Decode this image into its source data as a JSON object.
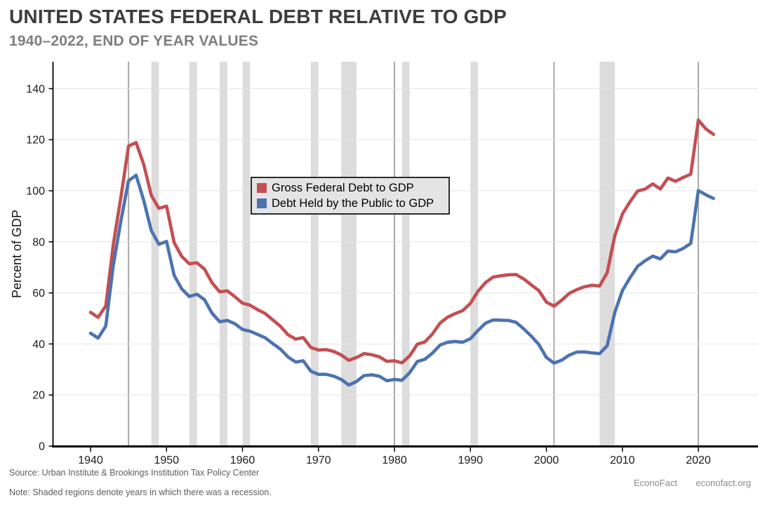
{
  "header": {
    "title": "UNITED STATES FEDERAL DEBT RELATIVE TO GDP",
    "subtitle": "1940–2022, END OF YEAR VALUES"
  },
  "footer": {
    "source": "Source: Urban Institute & Brookings Institution Tax Policy Center",
    "note": "Note: Shaded regions denote years in which there was a recession.",
    "brand": "EconoFact",
    "site": "econofact.org"
  },
  "chart_data": {
    "type": "line",
    "title": "United States Federal Debt Relative to GDP",
    "subtitle": "1940-2022, end of year values",
    "xlabel": "",
    "ylabel": "Percent of GDP",
    "start_year": 1940,
    "end_year": 2022,
    "x_ticks": [
      1940,
      1950,
      1960,
      1970,
      1980,
      1990,
      2000,
      2010,
      2020
    ],
    "y_ticks": [
      0,
      20,
      40,
      60,
      80,
      100,
      120,
      140
    ],
    "x_domain": [
      1935,
      2028
    ],
    "y_domain": [
      -2.5,
      150.5
    ],
    "grid": "horizontal-only",
    "legend_position": "upper-center-left, inside plot",
    "series": [
      {
        "name": "Gross Federal Debt to GDP",
        "color": "#c44e52",
        "values": [
          52.4,
          50.4,
          54.9,
          79.1,
          97.6,
          117.5,
          118.9,
          110.3,
          98.2,
          93.1,
          94.0,
          79.7,
          74.3,
          71.4,
          71.8,
          69.3,
          63.9,
          60.4,
          60.8,
          58.5,
          56.0,
          55.2,
          53.4,
          51.9,
          49.4,
          46.9,
          43.6,
          41.9,
          42.5,
          38.6,
          37.6,
          37.8,
          37.1,
          35.7,
          33.6,
          34.7,
          36.2,
          35.8,
          35.0,
          33.2,
          33.4,
          32.6,
          35.3,
          39.9,
          40.8,
          43.9,
          48.2,
          50.5,
          51.9,
          53.1,
          55.9,
          60.7,
          64.1,
          66.2,
          66.7,
          67.1,
          67.2,
          65.5,
          63.2,
          60.9,
          56.4,
          54.8,
          57.1,
          59.8,
          61.3,
          62.4,
          63.0,
          62.7,
          67.9,
          82.3,
          90.9,
          95.7,
          99.9,
          100.7,
          102.7,
          100.7,
          105.0,
          103.7,
          105.2,
          106.5,
          127.7,
          124.2,
          122.1
        ]
      },
      {
        "name": "Debt Held by the Public to GDP",
        "color": "#4c72b0",
        "values": [
          44.2,
          42.3,
          47.0,
          70.9,
          88.3,
          103.9,
          106.1,
          96.2,
          84.4,
          79.0,
          80.2,
          66.9,
          61.6,
          58.6,
          59.5,
          57.3,
          52.0,
          48.7,
          49.2,
          47.9,
          45.7,
          45.0,
          43.7,
          42.4,
          40.1,
          38.0,
          34.9,
          32.9,
          33.4,
          29.3,
          28.1,
          28.1,
          27.4,
          26.1,
          23.9,
          25.3,
          27.6,
          27.9,
          27.4,
          25.6,
          26.1,
          25.8,
          28.7,
          33.1,
          34.0,
          36.4,
          39.6,
          40.7,
          41.0,
          40.7,
          42.1,
          45.3,
          48.2,
          49.4,
          49.3,
          49.2,
          48.5,
          46.0,
          43.1,
          39.8,
          34.7,
          32.5,
          33.6,
          35.6,
          36.8,
          36.9,
          36.5,
          36.2,
          39.3,
          52.3,
          60.9,
          65.9,
          70.4,
          72.6,
          74.4,
          73.3,
          76.4,
          76.1,
          77.4,
          79.4,
          100.1,
          98.4,
          97.0
        ]
      }
    ],
    "recessions": {
      "multi_year_bands": [
        [
          1948,
          1949
        ],
        [
          1953,
          1954
        ],
        [
          1957,
          1958
        ],
        [
          1960,
          1961
        ],
        [
          1969,
          1970
        ],
        [
          1973,
          1975
        ],
        [
          1981,
          1982
        ],
        [
          1990,
          1991
        ],
        [
          2007,
          2009
        ]
      ],
      "single_year_lines": [
        1945,
        1980,
        2001,
        2020
      ]
    },
    "colors": {
      "recession_band": "#dcdcdc",
      "recession_line": "#a9a9a9",
      "grid": "#e3e3e3",
      "axis": "#000000",
      "tick_label": "#1a1a1a"
    }
  }
}
